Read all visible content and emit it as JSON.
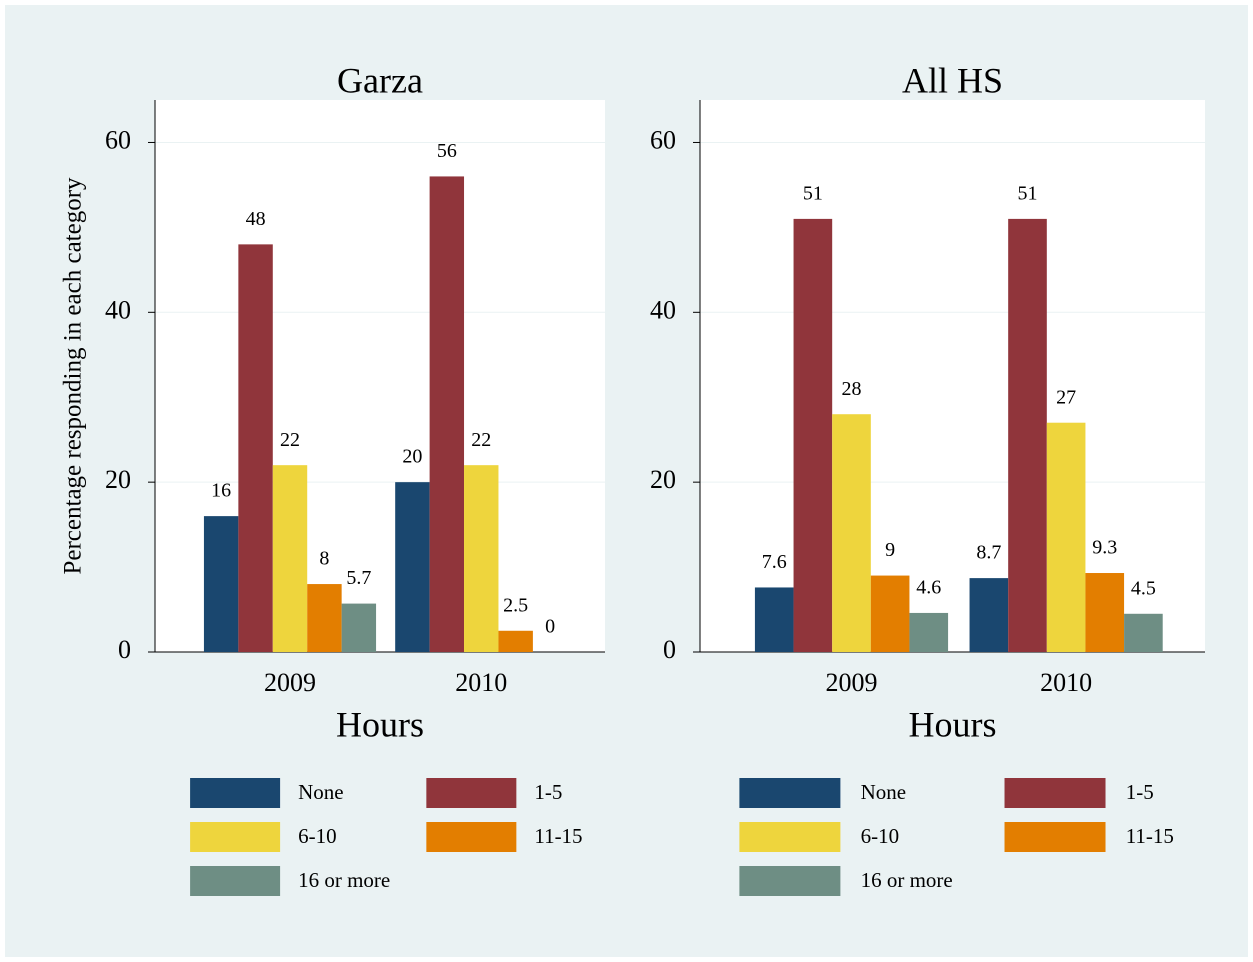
{
  "chart_data": [
    {
      "type": "bar",
      "title": "Garza",
      "ylabel": "Percentage responding in each category",
      "xlabel": "Hours",
      "categories": [
        "2009",
        "2010"
      ],
      "series": [
        {
          "name": "None",
          "color": "#1a476f",
          "values": [
            16,
            20
          ]
        },
        {
          "name": "1-5",
          "color": "#90353b",
          "values": [
            48,
            56
          ]
        },
        {
          "name": "6-10",
          "color": "#eed53d",
          "values": [
            22,
            22
          ]
        },
        {
          "name": "11-15",
          "color": "#e37e00",
          "values": [
            8,
            2.5
          ]
        },
        {
          "name": "16 or more",
          "color": "#6e8e84",
          "values": [
            5.7,
            0
          ]
        }
      ],
      "ylim": [
        0,
        65
      ],
      "yticks": [
        0,
        20,
        40,
        60
      ],
      "grid": true
    },
    {
      "type": "bar",
      "title": "All HS",
      "xlabel": "Hours",
      "categories": [
        "2009",
        "2010"
      ],
      "series": [
        {
          "name": "None",
          "color": "#1a476f",
          "values": [
            7.6,
            8.7
          ]
        },
        {
          "name": "1-5",
          "color": "#90353b",
          "values": [
            51,
            51
          ]
        },
        {
          "name": "6-10",
          "color": "#eed53d",
          "values": [
            28,
            27
          ]
        },
        {
          "name": "11-15",
          "color": "#e37e00",
          "values": [
            9,
            9.3
          ]
        },
        {
          "name": "16 or more",
          "color": "#6e8e84",
          "values": [
            4.6,
            4.5
          ]
        }
      ],
      "ylim": [
        0,
        65
      ],
      "yticks": [
        0,
        20,
        40,
        60
      ],
      "grid": true
    }
  ]
}
